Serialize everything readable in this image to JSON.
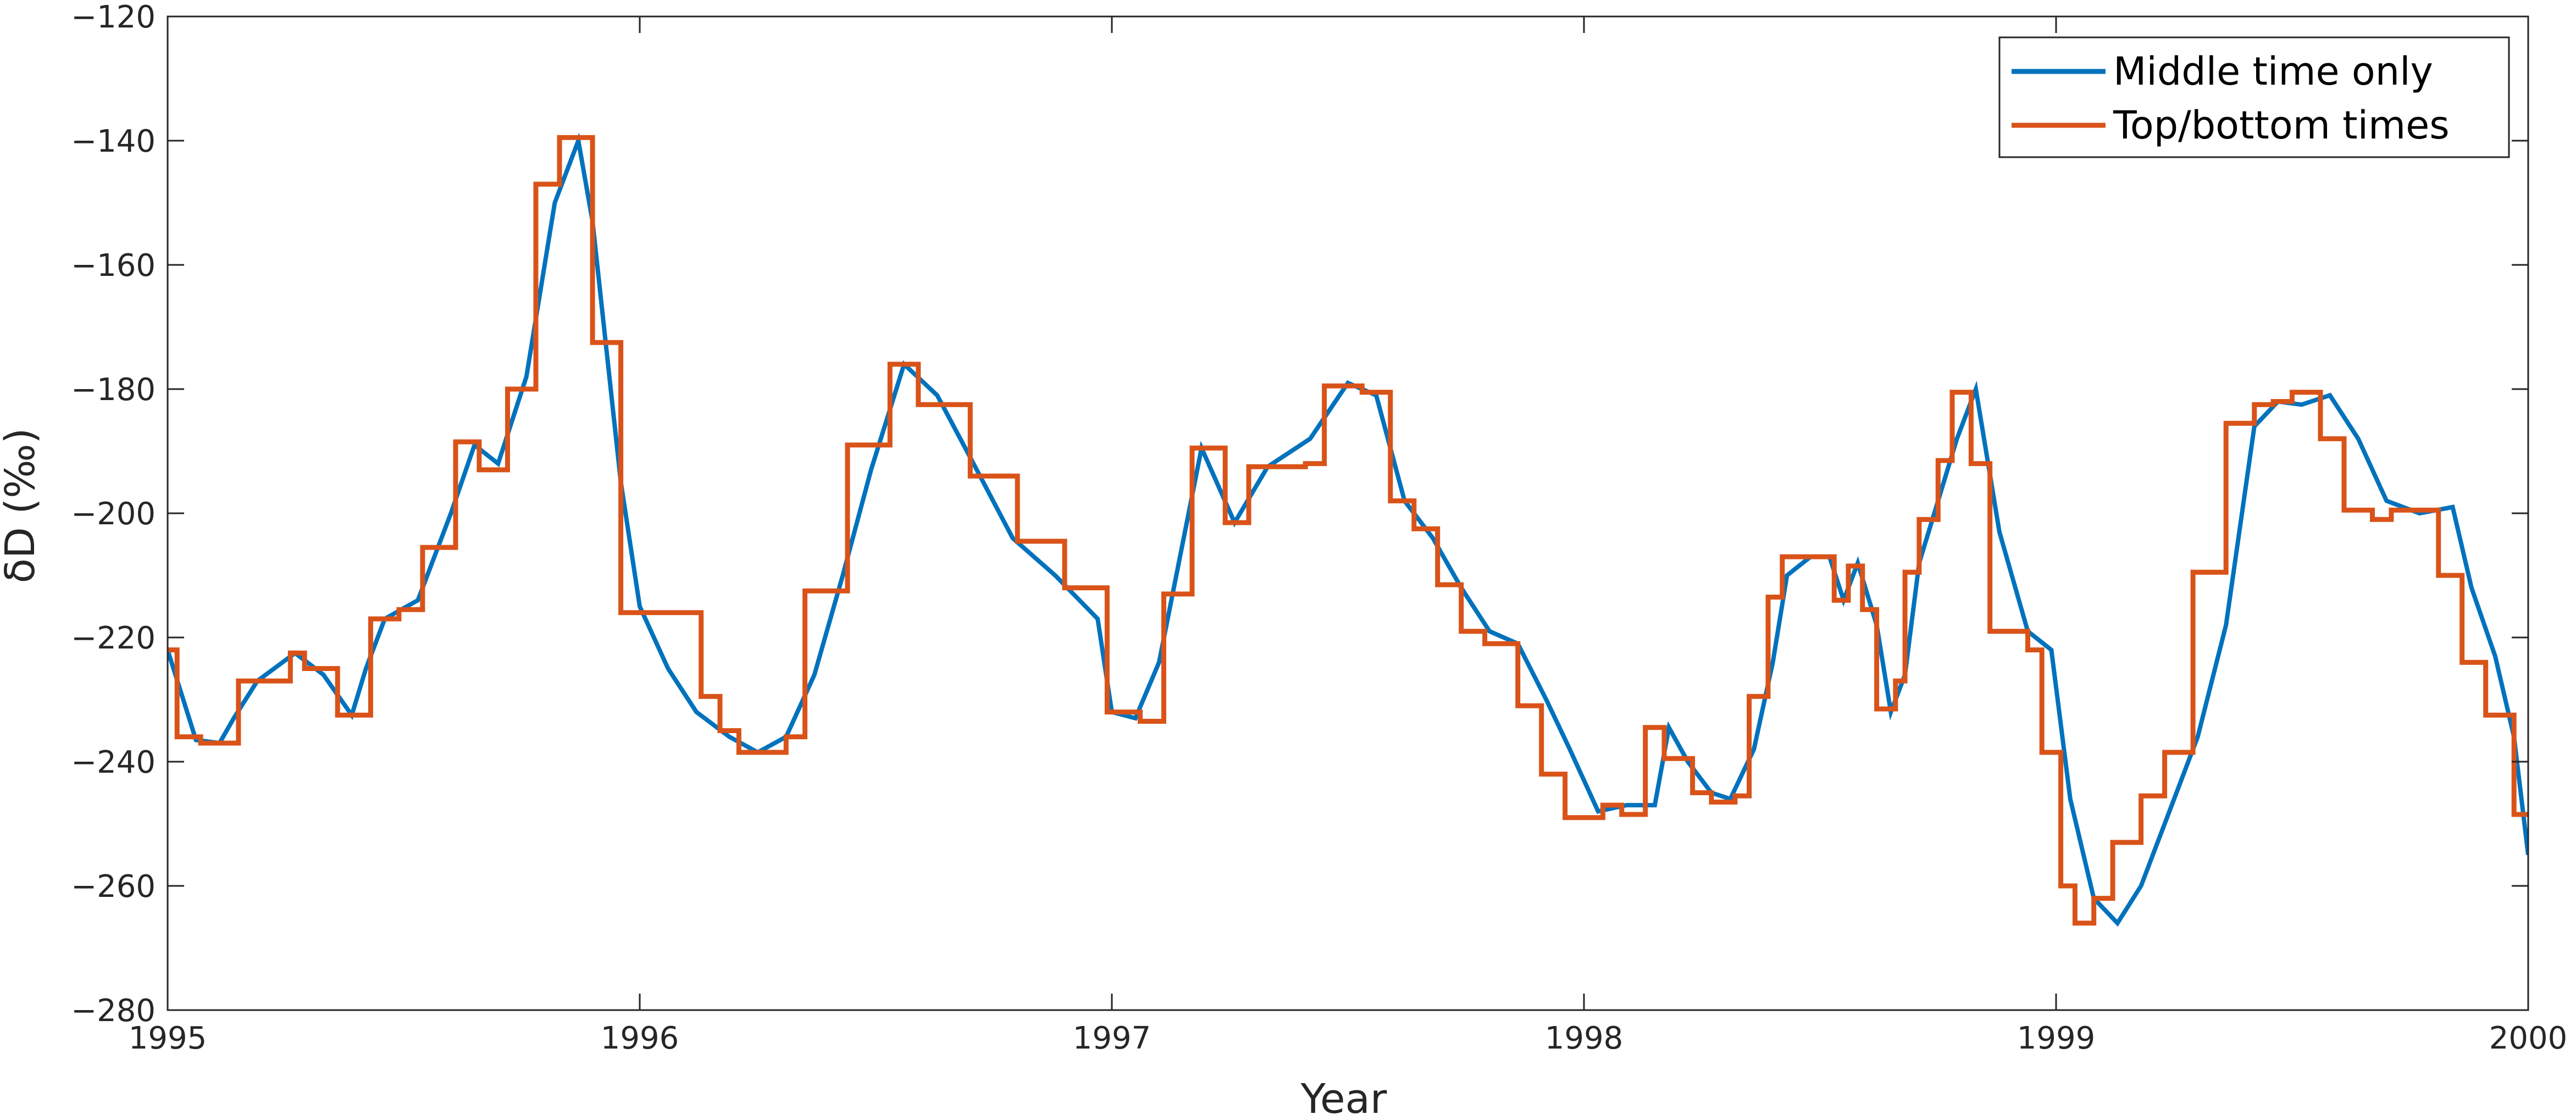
{
  "chart_data": {
    "type": "line",
    "title": "",
    "xlabel": "Year",
    "ylabel": "δD (‰)",
    "xlim": [
      1995,
      2000
    ],
    "ylim": [
      -280,
      -120
    ],
    "xticks": [
      1995,
      1996,
      1997,
      1998,
      1999,
      2000
    ],
    "xtick_labels": [
      "1995",
      "1996",
      "1997",
      "1998",
      "1999",
      "2000"
    ],
    "yticks": [
      -280,
      -260,
      -240,
      -220,
      -200,
      -180,
      -160,
      -140,
      -120
    ],
    "ytick_labels": [
      "−280",
      "−260",
      "−240",
      "−220",
      "−200",
      "−180",
      "−160",
      "−140",
      "−120"
    ],
    "grid": false,
    "legend_position": "top-right",
    "colors": {
      "series_1": "#0072BD",
      "series_2": "#D95319",
      "axis": "#262626"
    },
    "series": [
      {
        "name": "Middle time only",
        "style": "line",
        "x": [
          1995.0,
          1995.06,
          1995.11,
          1995.14,
          1995.19,
          1995.27,
          1995.33,
          1995.39,
          1995.42,
          1995.46,
          1995.53,
          1995.6,
          1995.65,
          1995.7,
          1995.76,
          1995.82,
          1995.87,
          1995.9,
          1995.96,
          1996.0,
          1996.06,
          1996.12,
          1996.19,
          1996.25,
          1996.31,
          1996.37,
          1996.43,
          1996.49,
          1996.56,
          1996.63,
          1996.7,
          1996.79,
          1996.88,
          1996.97,
          1997.0,
          1997.05,
          1997.1,
          1997.19,
          1997.26,
          1997.33,
          1997.42,
          1997.5,
          1997.56,
          1997.62,
          1997.68,
          1997.74,
          1997.8,
          1997.86,
          1997.92,
          1997.97,
          1998.03,
          1998.09,
          1998.15,
          1998.18,
          1998.22,
          1998.27,
          1998.31,
          1998.36,
          1998.4,
          1998.43,
          1998.48,
          1998.52,
          1998.55,
          1998.58,
          1998.62,
          1998.65,
          1998.68,
          1998.71,
          1998.75,
          1998.79,
          1998.83,
          1998.88,
          1998.94,
          1998.99,
          1999.03,
          1999.08,
          1999.13,
          1999.18,
          1999.24,
          1999.3,
          1999.36,
          1999.42,
          1999.47,
          1999.52,
          1999.58,
          1999.64,
          1999.7,
          1999.77,
          1999.84,
          1999.88,
          1999.93,
          1999.97,
          2000.0
        ],
        "y": [
          -222,
          -236.5,
          -237,
          -233,
          -227,
          -222.5,
          -226,
          -232.5,
          -225,
          -217,
          -214,
          -200,
          -189,
          -192,
          -178,
          -150,
          -140,
          -153,
          -195,
          -215,
          -225,
          -232,
          -236,
          -238.5,
          -236,
          -226,
          -210,
          -193,
          -176,
          -181,
          -191,
          -204,
          -210,
          -217,
          -232,
          -233,
          -224,
          -189.5,
          -201.5,
          -192.5,
          -188,
          -179,
          -181,
          -198,
          -204,
          -212,
          -219,
          -221,
          -230,
          -238,
          -248,
          -247,
          -247,
          -234.5,
          -240,
          -245,
          -246,
          -238,
          -224,
          -210,
          -207,
          -207,
          -214,
          -208,
          -218,
          -232,
          -226,
          -208,
          -198,
          -188,
          -180,
          -203,
          -219,
          -222,
          -246,
          -262,
          -266,
          -260,
          -248,
          -236,
          -218,
          -186,
          -182,
          -182.5,
          -181,
          -188,
          -198,
          -200,
          -199,
          -212,
          -223,
          -236,
          -255
        ]
      },
      {
        "name": "Top/bottom times",
        "style": "step",
        "x": [
          1995.0,
          1995.02,
          1995.07,
          1995.15,
          1995.26,
          1995.29,
          1995.36,
          1995.43,
          1995.49,
          1995.54,
          1995.61,
          1995.66,
          1995.72,
          1995.78,
          1995.83,
          1995.9,
          1995.96,
          1996.13,
          1996.17,
          1996.21,
          1996.31,
          1996.35,
          1996.44,
          1996.53,
          1996.59,
          1996.7,
          1996.8,
          1996.9,
          1996.99,
          1997.06,
          1997.11,
          1997.17,
          1997.24,
          1997.29,
          1997.41,
          1997.45,
          1997.53,
          1997.59,
          1997.64,
          1997.69,
          1997.74,
          1997.79,
          1997.86,
          1997.91,
          1997.96,
          1998.04,
          1998.08,
          1998.13,
          1998.17,
          1998.23,
          1998.27,
          1998.32,
          1998.35,
          1998.39,
          1998.42,
          1998.53,
          1998.56,
          1998.59,
          1998.62,
          1998.66,
          1998.68,
          1998.71,
          1998.75,
          1998.78,
          1998.82,
          1998.86,
          1998.94,
          1998.97,
          1999.01,
          1999.04,
          1999.08,
          1999.12,
          1999.18,
          1999.23,
          1999.29,
          1999.36,
          1999.42,
          1999.46,
          1999.5,
          1999.56,
          1999.61,
          1999.67,
          1999.71,
          1999.81,
          1999.86,
          1999.91,
          1999.97
        ],
        "y": [
          -222,
          -236,
          -237,
          -227,
          -222.5,
          -225,
          -232.5,
          -217,
          -215.5,
          -205.5,
          -188.5,
          -193,
          -180,
          -147,
          -139.5,
          -172.5,
          -216,
          -229.5,
          -235,
          -238.5,
          -236,
          -212.5,
          -189,
          -176,
          -182.5,
          -194,
          -204.5,
          -212,
          -232,
          -233.5,
          -213,
          -189.5,
          -201.5,
          -192.5,
          -192,
          -179.5,
          -180.5,
          -198,
          -202.5,
          -211.5,
          -219,
          -221,
          -231,
          -242,
          -249,
          -247,
          -248.5,
          -234.5,
          -239.5,
          -245,
          -246.5,
          -245.5,
          -229.5,
          -213.5,
          -207,
          -214,
          -208.5,
          -215.5,
          -231.5,
          -227,
          -209.5,
          -201,
          -191.5,
          -180.5,
          -192,
          -219,
          -222,
          -238.5,
          -260,
          -266,
          -262,
          -253,
          -245.5,
          -238.5,
          -209.5,
          -185.5,
          -182.5,
          -182,
          -180.5,
          -188,
          -199.5,
          -201,
          -199.5,
          -210,
          -224,
          -232.5,
          -248.5
        ]
      }
    ]
  }
}
